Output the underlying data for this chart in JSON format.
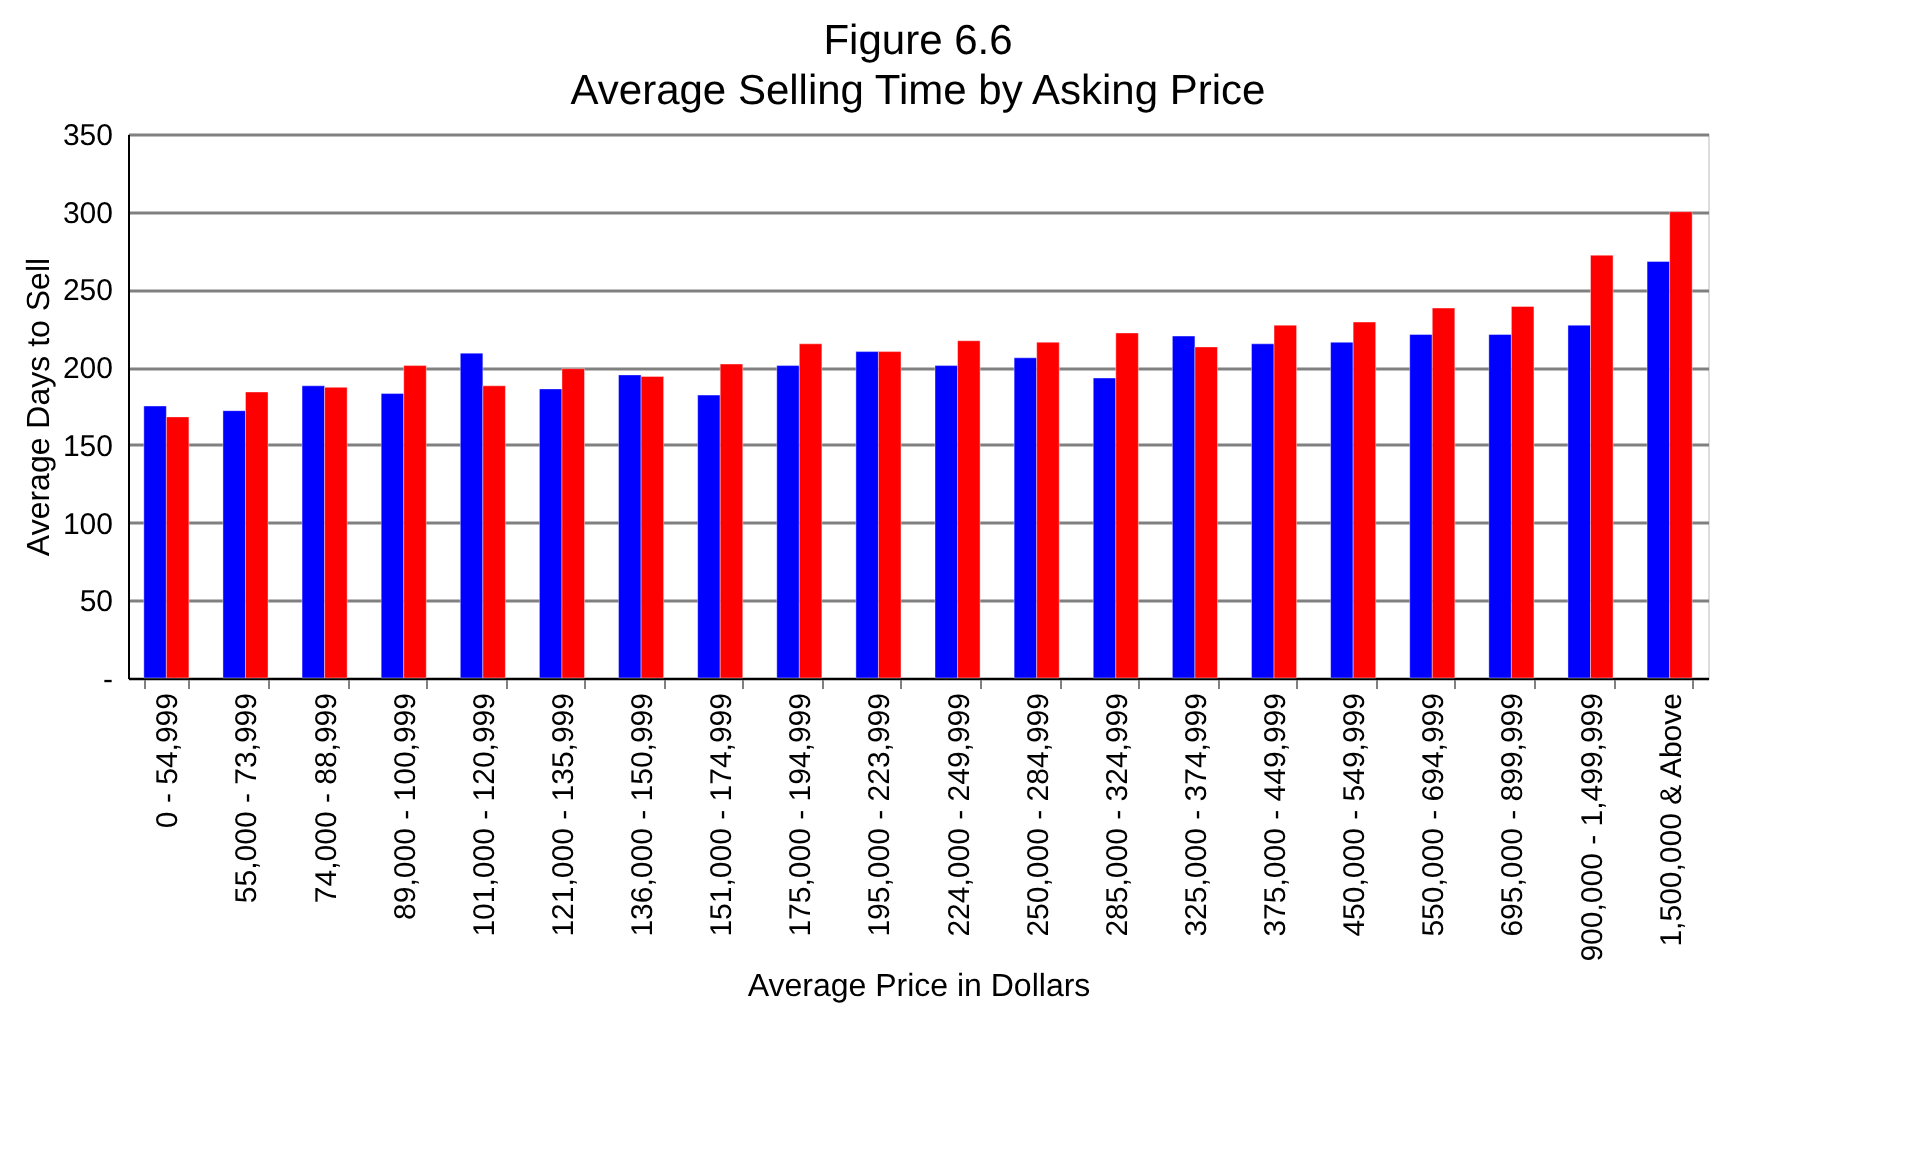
{
  "chart_data": {
    "type": "bar",
    "title": "Figure 6.6",
    "subtitle": "Average Selling Time by Asking Price",
    "xlabel": "Average Price in Dollars",
    "ylabel": "Average Days to Sell",
    "categories": [
      "0 - 54,999",
      "55,000 - 73,999",
      "74,000 - 88,999",
      "89,000 - 100,999",
      "101,000 - 120,999",
      "121,000 - 135,999",
      "136,000 - 150,999",
      "151,000 - 174,999",
      "175,000 - 194,999",
      "195,000 - 223,999",
      "224,000 - 249,999",
      "250,000 - 284,999",
      "285,000 - 324,999",
      "325,000 - 374,999",
      "375,000 - 449,999",
      "450,000 - 549,999",
      "550,000 - 694,999",
      "695,000 - 899,999",
      "900,000 - 1,499,999",
      "1,500,000 & Above"
    ],
    "series": [
      {
        "color": "#0000ff",
        "values": [
          175,
          172,
          188,
          183,
          209,
          186,
          195,
          182,
          201,
          210,
          201,
          206,
          193,
          220,
          215,
          216,
          221,
          221,
          227,
          268
        ]
      },
      {
        "color": "#ff0000",
        "values": [
          168,
          184,
          187,
          201,
          188,
          199,
          194,
          202,
          215,
          210,
          217,
          216,
          222,
          213,
          227,
          229,
          238,
          239,
          272,
          300
        ]
      }
    ],
    "ylim": [
      0,
      350
    ],
    "yticks": [
      {
        "value": 0,
        "label": "-"
      },
      50,
      100,
      150,
      200,
      250,
      300,
      350
    ],
    "grid": "y",
    "legend": false
  }
}
